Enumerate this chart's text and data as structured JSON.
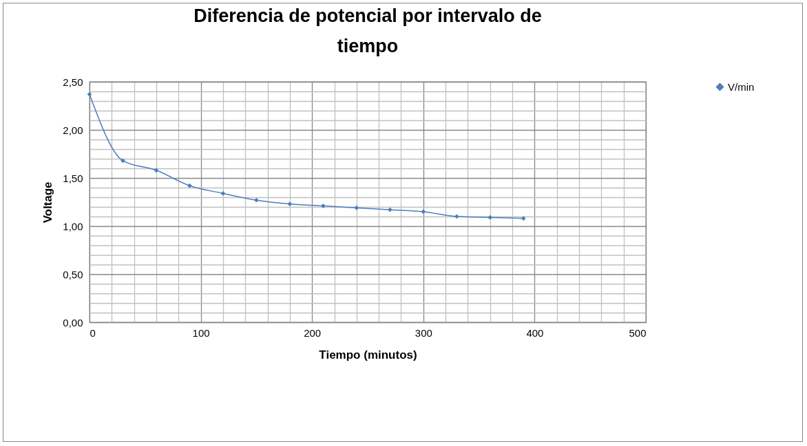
{
  "chart_data": {
    "type": "line",
    "title": "Diferencia de potencial por intervalo de tiempo",
    "xlabel": "Tiempo (minutos)",
    "ylabel": "Voltage",
    "x": [
      0,
      30,
      60,
      90,
      120,
      150,
      180,
      210,
      240,
      270,
      300,
      330,
      360,
      390
    ],
    "series": [
      {
        "name": "V/min",
        "color": "#4a7ebb",
        "values": [
          2.37,
          1.68,
          1.58,
          1.42,
          1.34,
          1.27,
          1.23,
          1.21,
          1.19,
          1.17,
          1.15,
          1.1,
          1.09,
          1.08
        ]
      }
    ],
    "xlim": [
      0,
      500
    ],
    "xticks": [
      0,
      {
        "value": 20,
        "label": null
      },
      {
        "value": 40,
        "label": null
      },
      {
        "value": 60,
        "label": null
      },
      {
        "value": 80,
        "label": null
      },
      100,
      {
        "value": 120,
        "label": null
      },
      {
        "value": 140,
        "label": null
      },
      {
        "value": 160,
        "label": null
      },
      {
        "value": 180,
        "label": null
      },
      200,
      {
        "value": 220,
        "label": null
      },
      {
        "value": 240,
        "label": null
      },
      {
        "value": 260,
        "label": null
      },
      {
        "value": 280,
        "label": null
      },
      300,
      {
        "value": 320,
        "label": null
      },
      {
        "value": 340,
        "label": null
      },
      {
        "value": 360,
        "label": null
      },
      {
        "value": 380,
        "label": null
      },
      400,
      {
        "value": 420,
        "label": null
      },
      {
        "value": 440,
        "label": null
      },
      {
        "value": 460,
        "label": null
      },
      {
        "value": 480,
        "label": null
      },
      500
    ],
    "ylim": [
      0,
      2.5
    ],
    "yticks": [
      {
        "value": 0,
        "label": "0,00"
      },
      {
        "value": 0.1,
        "label": null
      },
      {
        "value": 0.2,
        "label": null
      },
      {
        "value": 0.3,
        "label": null
      },
      {
        "value": 0.4,
        "label": null
      },
      {
        "value": 0.5,
        "label": "0,50"
      },
      {
        "value": 0.6,
        "label": null
      },
      {
        "value": 0.7,
        "label": null
      },
      {
        "value": 0.8,
        "label": null
      },
      {
        "value": 0.9,
        "label": null
      },
      {
        "value": 1,
        "label": "1,00"
      },
      {
        "value": 1.1,
        "label": null
      },
      {
        "value": 1.2,
        "label": null
      },
      {
        "value": 1.3,
        "label": null
      },
      {
        "value": 1.4,
        "label": null
      },
      {
        "value": 1.5,
        "label": "1,50"
      },
      {
        "value": 1.6,
        "label": null
      },
      {
        "value": 1.7,
        "label": null
      },
      {
        "value": 1.8,
        "label": null
      },
      {
        "value": 1.9,
        "label": null
      },
      {
        "value": 2,
        "label": "2,00"
      },
      {
        "value": 2.1,
        "label": null
      },
      {
        "value": 2.2,
        "label": null
      },
      {
        "value": 2.3,
        "label": null
      },
      {
        "value": 2.4,
        "label": null
      },
      {
        "value": 2.5,
        "label": "2,50"
      }
    ],
    "grid": true,
    "legend": "right",
    "marker": "diamond",
    "line_style": "solid"
  }
}
